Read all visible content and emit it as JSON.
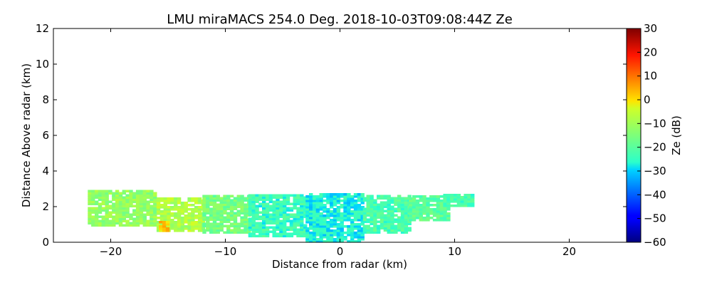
{
  "chart_data": {
    "type": "heatmap",
    "title": "LMU miraMACS 254.0 Deg. 2018-10-03T09:08:44Z  Ze",
    "xlabel": "Distance from radar (km)",
    "ylabel": "Distance Above radar  (km)",
    "xlim": [
      -25,
      25
    ],
    "ylim": [
      0,
      12
    ],
    "x_ticks": [
      {
        "value": -20,
        "label": "−20"
      },
      {
        "value": -10,
        "label": "−10"
      },
      {
        "value": 0,
        "label": "0"
      },
      {
        "value": 10,
        "label": "10"
      },
      {
        "value": 20,
        "label": "20"
      }
    ],
    "y_ticks": [
      {
        "value": 0,
        "label": "0"
      },
      {
        "value": 2,
        "label": "2"
      },
      {
        "value": 4,
        "label": "4"
      },
      {
        "value": 6,
        "label": "6"
      },
      {
        "value": 8,
        "label": "8"
      },
      {
        "value": 10,
        "label": "10"
      },
      {
        "value": 12,
        "label": "12"
      }
    ],
    "colorbar": {
      "label": "Ze (dB)",
      "range": [
        -60,
        30
      ],
      "colormap": "jet",
      "ticks": [
        {
          "value": 30,
          "label": "30"
        },
        {
          "value": 20,
          "label": "20"
        },
        {
          "value": 10,
          "label": "10"
        },
        {
          "value": 0,
          "label": "0"
        },
        {
          "value": -10,
          "label": "−10"
        },
        {
          "value": -20,
          "label": "−20"
        },
        {
          "value": -30,
          "label": "−30"
        },
        {
          "value": -40,
          "label": "−40"
        },
        {
          "value": -50,
          "label": "−50"
        },
        {
          "value": -60,
          "label": "−60"
        }
      ]
    },
    "grid": false,
    "echo_regions": [
      {
        "x_range": [
          -22,
          -16
        ],
        "y_range": [
          0.9,
          2.9
        ],
        "ze": -12
      },
      {
        "x_range": [
          -16,
          -12
        ],
        "y_range": [
          0.6,
          2.5
        ],
        "ze": -8
      },
      {
        "x_range": [
          -15.8,
          -15.0
        ],
        "y_range": [
          0.6,
          1.1
        ],
        "ze": 2
      },
      {
        "x_range": [
          -12,
          -8
        ],
        "y_range": [
          0.5,
          2.6
        ],
        "ze": -16
      },
      {
        "x_range": [
          -8,
          -3
        ],
        "y_range": [
          0.3,
          2.7
        ],
        "ze": -24
      },
      {
        "x_range": [
          -3,
          2
        ],
        "y_range": [
          0.0,
          2.7
        ],
        "ze": -27
      },
      {
        "x_range": [
          2,
          6
        ],
        "y_range": [
          0.5,
          2.6
        ],
        "ze": -22
      },
      {
        "x_range": [
          6,
          9.5
        ],
        "y_range": [
          1.2,
          2.6
        ],
        "ze": -20
      },
      {
        "x_range": [
          9,
          11.5
        ],
        "y_range": [
          2.0,
          2.7
        ],
        "ze": -22
      }
    ]
  }
}
